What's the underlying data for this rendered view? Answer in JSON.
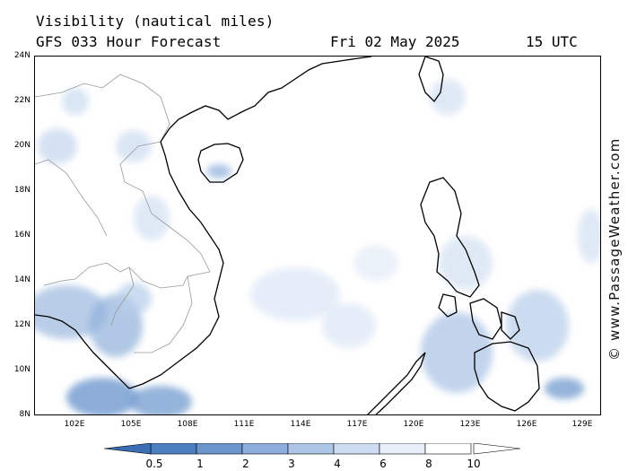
{
  "title": {
    "variable": "Visibility (nautical miles)",
    "model_run": "GFS 033 Hour Forecast",
    "date": "Fri 02 May 2025",
    "time": "15 UTC"
  },
  "watermark": "© www.PassageWeather.com",
  "axes": {
    "lat_labels": [
      "24N",
      "22N",
      "20N",
      "18N",
      "16N",
      "14N",
      "12N",
      "10N",
      "8N"
    ],
    "lon_labels": [
      "102E",
      "105E",
      "108E",
      "111E",
      "114E",
      "117E",
      "120E",
      "123E",
      "126E",
      "129E"
    ]
  },
  "legend": {
    "labels": [
      "0.5",
      "1",
      "2",
      "3",
      "4",
      "6",
      "8",
      "10"
    ],
    "colors": [
      "#3a6fb5",
      "#4c7fc0",
      "#6b96cd",
      "#8daedb",
      "#adc6e6",
      "#cddcf0",
      "#e6eef8",
      "#ffffff"
    ]
  },
  "colors": {
    "haze_dark": "#6f98cf",
    "haze_light": "#c9dbf0",
    "coastline": "#000000",
    "border": "#999999"
  }
}
